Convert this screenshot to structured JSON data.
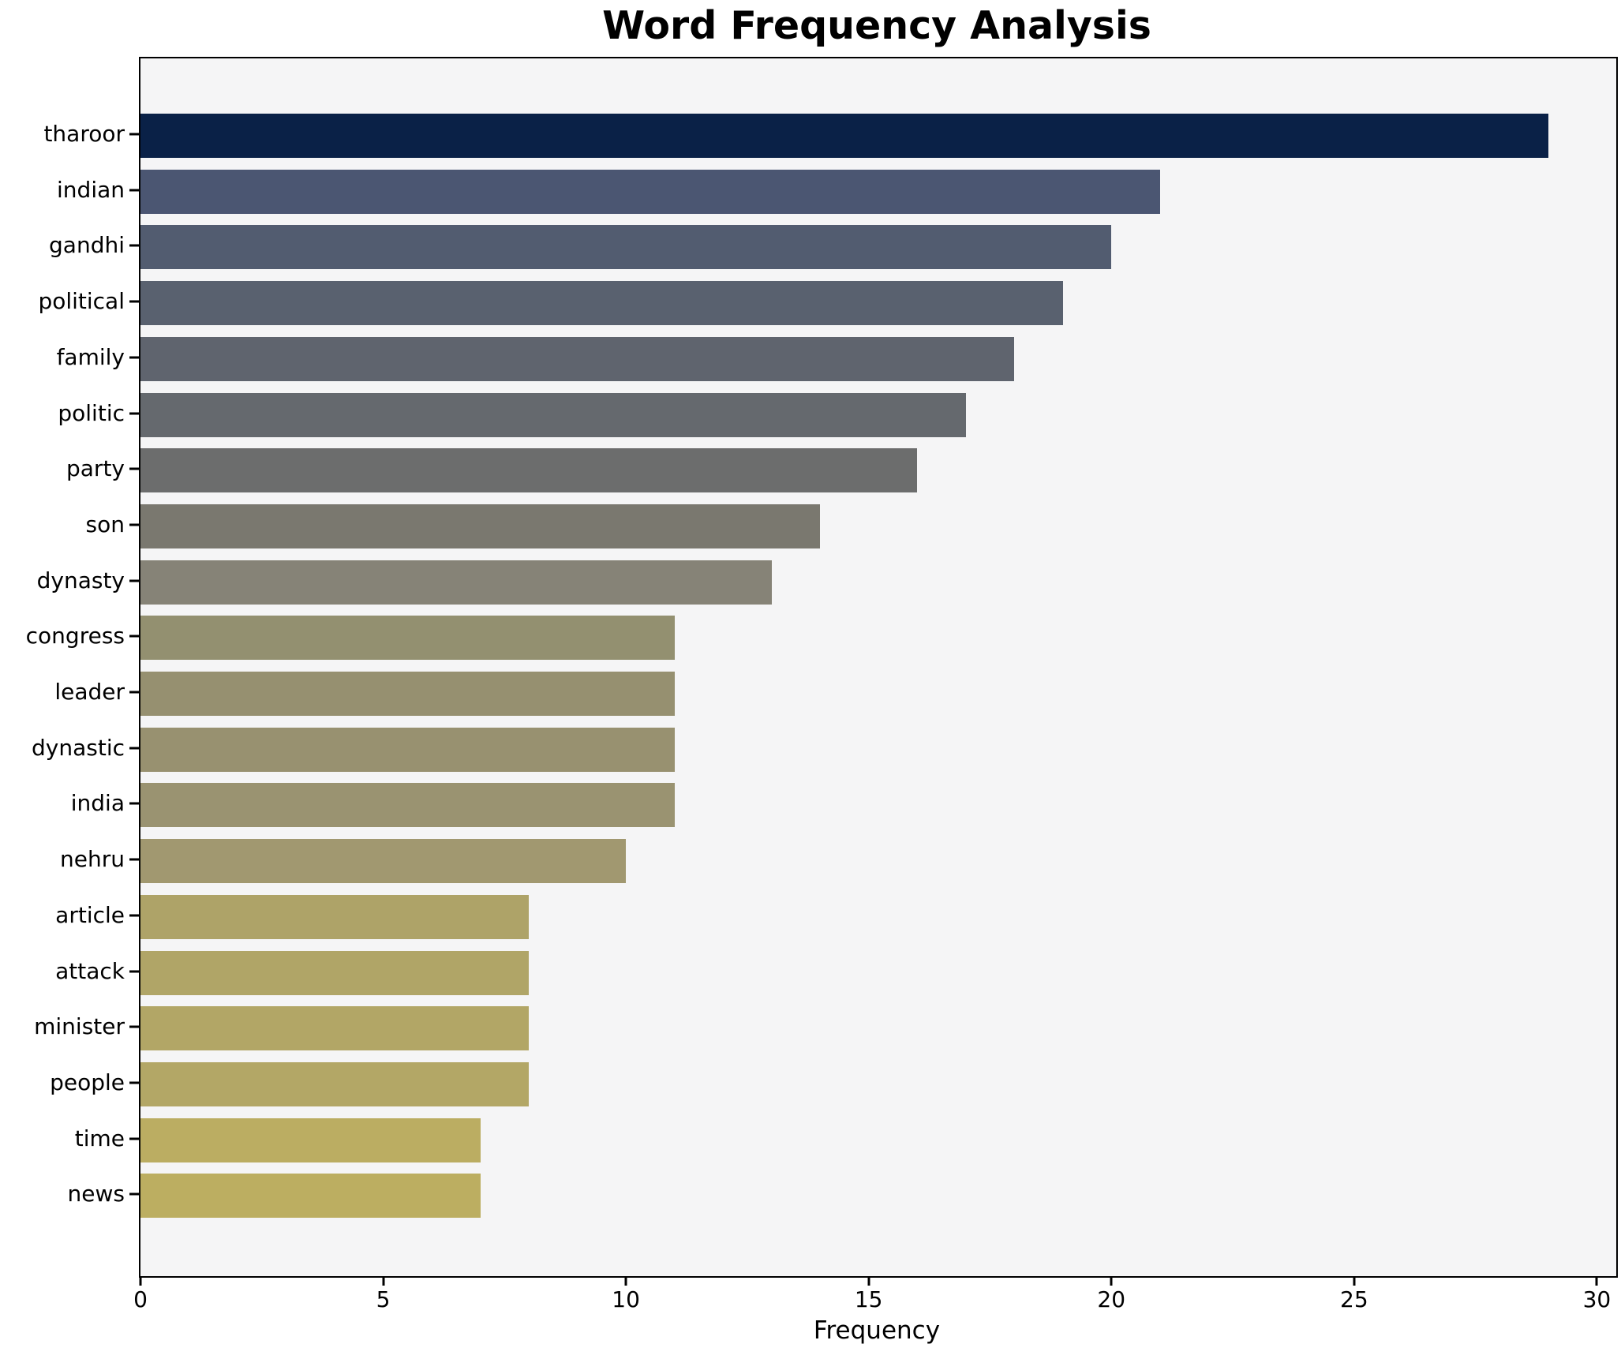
{
  "title": "Word Frequency Analysis",
  "chart_data": {
    "type": "bar",
    "orientation": "horizontal",
    "title": "Word Frequency Analysis",
    "xlabel": "Frequency",
    "ylabel": "",
    "categories": [
      "tharoor",
      "indian",
      "gandhi",
      "political",
      "family",
      "politic",
      "party",
      "son",
      "dynasty",
      "congress",
      "leader",
      "dynastic",
      "india",
      "nehru",
      "article",
      "attack",
      "minister",
      "people",
      "time",
      "news"
    ],
    "values": [
      29,
      21,
      20,
      19,
      18,
      17,
      16,
      14,
      13,
      11,
      11,
      11,
      11,
      10,
      8,
      8,
      8,
      8,
      7,
      7
    ],
    "xlim": [
      0,
      30.4
    ],
    "xticks": [
      0,
      5,
      10,
      15,
      20,
      25,
      30
    ],
    "grid": false,
    "legend": null,
    "colormap": "cividis",
    "bar_colors": [
      "#0a2147",
      "#4b5672",
      "#525c70",
      "#59616f",
      "#5f646e",
      "#65696e",
      "#6c6d6d",
      "#7a786f",
      "#868377",
      "#939070",
      "#969070",
      "#989170",
      "#9a9371",
      "#a19870",
      "#aea368",
      "#b0a567",
      "#b2a666",
      "#b3a766",
      "#bbad62",
      "#bcae61"
    ],
    "plot_background": "#f5f5f6",
    "figure_background": "#ffffff",
    "spine_color": "#000000",
    "text_color": "#000000"
  }
}
